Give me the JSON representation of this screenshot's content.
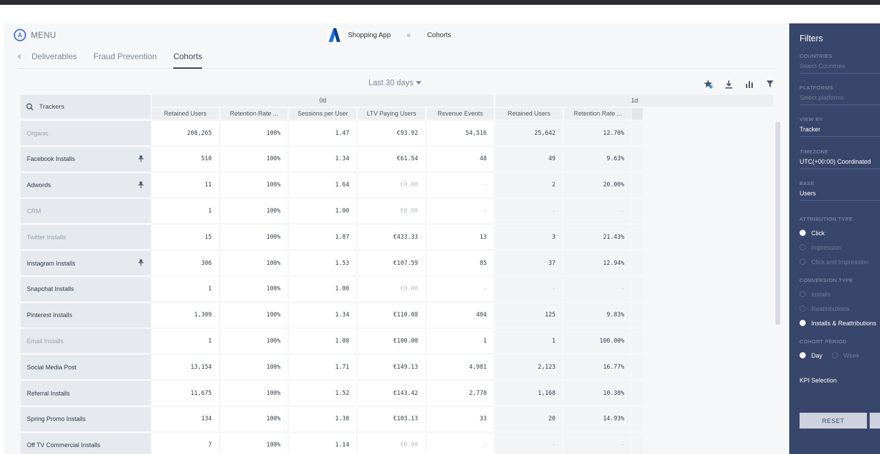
{
  "header": {
    "menu_label": "MENU",
    "app_name": "Shopping App",
    "section": "Cohorts"
  },
  "tabs": [
    {
      "label": "Deliverables"
    },
    {
      "label": "Fraud Prevention"
    },
    {
      "label": "Cohorts",
      "active": true
    }
  ],
  "period": "Last 30 days",
  "table": {
    "search_label": "Trackers",
    "groups": [
      "0d",
      "1d"
    ],
    "columns": [
      "Retained Users",
      "Retention Rate ...",
      "Sessions per User",
      "LTV Paying Users",
      "Revenue Events",
      "Retained Users",
      "Retention Rate ..."
    ],
    "rows": [
      {
        "name": "Organic",
        "dim": true,
        "pin": false,
        "values": [
          "208,265",
          "100%",
          "1.47",
          "€93.92",
          "54,516",
          "25,642",
          "12.70%"
        ]
      },
      {
        "name": "Facebook Installs",
        "dim": false,
        "pin": true,
        "values": [
          "510",
          "100%",
          "1.34",
          "€61.54",
          "48",
          "49",
          "9.63%"
        ]
      },
      {
        "name": "Adwords",
        "dim": false,
        "pin": true,
        "values": [
          "11",
          "100%",
          "1.64",
          "€0.00",
          "-",
          "2",
          "20.00%"
        ]
      },
      {
        "name": "CRM",
        "dim": true,
        "pin": false,
        "values": [
          "1",
          "100%",
          "1.00",
          "€0.00",
          "-",
          "-",
          "-"
        ]
      },
      {
        "name": "Twitter Installs",
        "dim": true,
        "pin": false,
        "values": [
          "15",
          "100%",
          "1.87",
          "€433.33",
          "13",
          "3",
          "21.43%"
        ]
      },
      {
        "name": "Instagram Installs",
        "dim": false,
        "pin": true,
        "values": [
          "306",
          "100%",
          "1.53",
          "€107.59",
          "85",
          "37",
          "12.94%"
        ]
      },
      {
        "name": "Snapchat Installs",
        "dim": false,
        "pin": false,
        "values": [
          "1",
          "100%",
          "1.00",
          "€0.00",
          "-",
          "-",
          "-"
        ]
      },
      {
        "name": "Pinterest Installs",
        "dim": false,
        "pin": false,
        "values": [
          "1,309",
          "100%",
          "1.34",
          "€110.08",
          "404",
          "125",
          "9.83%"
        ]
      },
      {
        "name": "Email Installs",
        "dim": true,
        "pin": false,
        "values": [
          "1",
          "100%",
          "1.00",
          "€100.00",
          "1",
          "1",
          "100.00%"
        ]
      },
      {
        "name": "Social Media Post",
        "dim": false,
        "pin": false,
        "values": [
          "13,154",
          "100%",
          "1.71",
          "€149.13",
          "4,981",
          "2,123",
          "16.77%"
        ]
      },
      {
        "name": "Referral Installs",
        "dim": false,
        "pin": false,
        "values": [
          "11,675",
          "100%",
          "1.52",
          "€143.42",
          "2,778",
          "1,168",
          "10.38%"
        ]
      },
      {
        "name": "Spring Promo Installs",
        "dim": false,
        "pin": false,
        "values": [
          "134",
          "100%",
          "1.30",
          "€103.13",
          "33",
          "20",
          "14.93%"
        ]
      },
      {
        "name": "Off TV Commercial Installs",
        "dim": false,
        "pin": false,
        "values": [
          "7",
          "100%",
          "1.14",
          "€0.00",
          "-",
          "-",
          "-"
        ]
      }
    ]
  },
  "filters": {
    "title": "Filters",
    "countries": {
      "label": "COUNTRIES",
      "placeholder": "Select Countries"
    },
    "platforms": {
      "label": "PLATFORMS",
      "placeholder": "Select platforms"
    },
    "view_by": {
      "label": "VIEW BY",
      "value": "Tracker"
    },
    "timezone": {
      "label": "TIMEZONE",
      "value": "UTC(+00:00) Coordinated"
    },
    "base": {
      "label": "BASE",
      "value": "Users"
    },
    "attribution": {
      "label": "ATTRIBUTION TYPE",
      "options": [
        "Click",
        "Impression",
        "Click and Impression"
      ],
      "selected": 0
    },
    "conversion": {
      "label": "CONVERSION TYPE",
      "options": [
        "Installs",
        "Reattributions",
        "Installs & Reattributions"
      ],
      "selected": 2
    },
    "cohort_period": {
      "label": "COHORT PERIOD",
      "options": [
        "Day",
        "Week"
      ],
      "selected": 0
    },
    "kpi_label": "KPI Selection",
    "reset_label": "RESET"
  },
  "colors": {
    "filters_bg": "#39466b",
    "accent": "#4b7bd6"
  }
}
